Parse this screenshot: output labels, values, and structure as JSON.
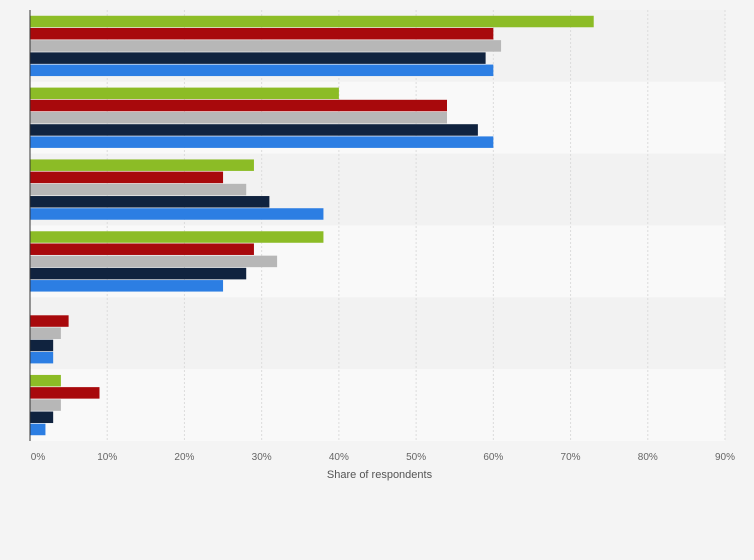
{
  "chart_data": {
    "type": "bar",
    "orientation": "horizontal",
    "title": "",
    "xlabel": "Share of respondents",
    "ylabel": "",
    "xlim": [
      0,
      90
    ],
    "x_ticks": [
      "0%",
      "10%",
      "20%",
      "30%",
      "40%",
      "50%",
      "60%",
      "70%",
      "80%",
      "90%"
    ],
    "categories": [
      "",
      "",
      "",
      "",
      "",
      ""
    ],
    "grid": true,
    "legend": "none",
    "series": [
      {
        "color": "#8cbc26",
        "values": [
          73,
          40,
          29,
          38,
          0,
          4
        ]
      },
      {
        "color": "#a8090c",
        "values": [
          60,
          54,
          25,
          29,
          5,
          9
        ]
      },
      {
        "color": "#b7b7b7",
        "values": [
          61,
          54,
          28,
          32,
          4,
          4
        ]
      },
      {
        "color": "#10233f",
        "values": [
          59,
          58,
          31,
          28,
          3,
          3
        ]
      },
      {
        "color": "#2c7ee3",
        "values": [
          60,
          60,
          38,
          25,
          3,
          2
        ]
      }
    ]
  }
}
